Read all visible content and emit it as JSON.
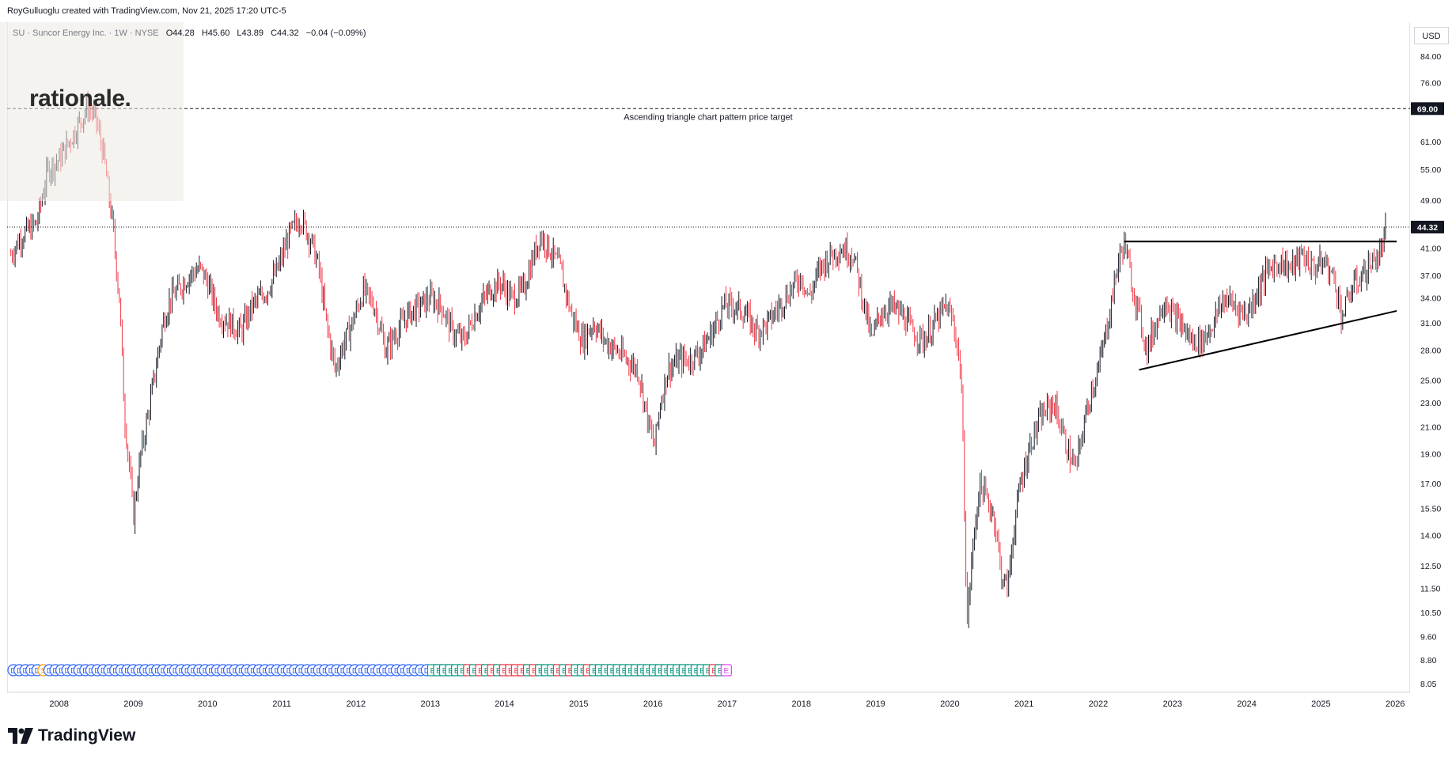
{
  "credit": "RoyGulluoglu created with TradingView.com, Nov 21, 2025 17:20 UTC-5",
  "symbol": {
    "name": "SU · Suncor Energy Inc. · 1W · NYSE",
    "open": "O44.28",
    "high": "H45.60",
    "low": "L43.89",
    "close": "C44.32",
    "change": "−0.04 (−0.09%)"
  },
  "watermark_logo": "rationale.",
  "branding": "TradingView",
  "currency": "USD",
  "colors": {
    "up": "#131722",
    "down": "#f23645",
    "grid": "#e0e3eb",
    "dividend": "#2962ff",
    "split": "#ff9800",
    "earnings_beat": "#089981",
    "earnings_miss": "#f23645",
    "earnings_upcoming": "#e040fb"
  },
  "chart_data": {
    "type": "candlestick",
    "scale": "log",
    "ylim": [
      8.0,
      92
    ],
    "yticks": [
      8.05,
      8.8,
      9.6,
      10.5,
      11.5,
      12.5,
      14.0,
      15.5,
      17.0,
      19.0,
      21.0,
      23.0,
      25.0,
      28.0,
      31.0,
      34.0,
      37.0,
      41.0,
      49.0,
      55.0,
      61.0,
      76.0,
      84.0
    ],
    "xticks": [
      "2008",
      "2009",
      "2010",
      "2011",
      "2012",
      "2013",
      "2014",
      "2015",
      "2016",
      "2017",
      "2018",
      "2019",
      "2020",
      "2021",
      "2022",
      "2023",
      "2024",
      "2025",
      "2026"
    ],
    "x_range": [
      2007.3,
      2026.2
    ],
    "last_price": 44.32,
    "last_price_label": "44.32",
    "price_series": [
      [
        2007.35,
        40
      ],
      [
        2007.5,
        43
      ],
      [
        2007.7,
        45
      ],
      [
        2007.85,
        55
      ],
      [
        2008.0,
        57
      ],
      [
        2008.2,
        63
      ],
      [
        2008.4,
        70
      ],
      [
        2008.5,
        66
      ],
      [
        2008.6,
        58
      ],
      [
        2008.72,
        45
      ],
      [
        2008.82,
        33
      ],
      [
        2008.88,
        22
      ],
      [
        2008.95,
        18
      ],
      [
        2009.0,
        15
      ],
      [
        2009.1,
        19
      ],
      [
        2009.2,
        22
      ],
      [
        2009.3,
        26
      ],
      [
        2009.4,
        31
      ],
      [
        2009.5,
        34
      ],
      [
        2009.6,
        35
      ],
      [
        2009.75,
        37
      ],
      [
        2009.9,
        38
      ],
      [
        2010.0,
        36
      ],
      [
        2010.15,
        32
      ],
      [
        2010.3,
        31
      ],
      [
        2010.45,
        30
      ],
      [
        2010.6,
        33
      ],
      [
        2010.8,
        35
      ],
      [
        2010.95,
        38
      ],
      [
        2011.1,
        43
      ],
      [
        2011.25,
        46
      ],
      [
        2011.4,
        42
      ],
      [
        2011.5,
        38
      ],
      [
        2011.6,
        31
      ],
      [
        2011.72,
        26
      ],
      [
        2011.8,
        28
      ],
      [
        2011.95,
        31
      ],
      [
        2012.1,
        35
      ],
      [
        2012.25,
        33
      ],
      [
        2012.4,
        28
      ],
      [
        2012.55,
        30
      ],
      [
        2012.7,
        32
      ],
      [
        2012.85,
        33
      ],
      [
        2013.0,
        34
      ],
      [
        2013.15,
        33
      ],
      [
        2013.3,
        30
      ],
      [
        2013.45,
        29
      ],
      [
        2013.6,
        32
      ],
      [
        2013.8,
        35
      ],
      [
        2013.95,
        36
      ],
      [
        2014.1,
        34
      ],
      [
        2014.25,
        35
      ],
      [
        2014.4,
        40
      ],
      [
        2014.48,
        43
      ],
      [
        2014.6,
        41
      ],
      [
        2014.75,
        38
      ],
      [
        2014.9,
        32
      ],
      [
        2015.05,
        29
      ],
      [
        2015.2,
        31
      ],
      [
        2015.35,
        29
      ],
      [
        2015.5,
        28
      ],
      [
        2015.65,
        27
      ],
      [
        2015.8,
        26
      ],
      [
        2015.95,
        21
      ],
      [
        2016.02,
        19.5
      ],
      [
        2016.1,
        23
      ],
      [
        2016.2,
        26
      ],
      [
        2016.35,
        27
      ],
      [
        2016.5,
        27
      ],
      [
        2016.65,
        28
      ],
      [
        2016.8,
        30
      ],
      [
        2016.95,
        33
      ],
      [
        2017.1,
        33
      ],
      [
        2017.25,
        32
      ],
      [
        2017.4,
        30
      ],
      [
        2017.55,
        31
      ],
      [
        2017.7,
        33
      ],
      [
        2017.85,
        35
      ],
      [
        2018.0,
        37
      ],
      [
        2018.1,
        34
      ],
      [
        2018.25,
        38
      ],
      [
        2018.4,
        40
      ],
      [
        2018.55,
        41
      ],
      [
        2018.7,
        40
      ],
      [
        2018.85,
        33
      ],
      [
        2018.95,
        29
      ],
      [
        2019.05,
        32
      ],
      [
        2019.2,
        33
      ],
      [
        2019.35,
        32
      ],
      [
        2019.5,
        30
      ],
      [
        2019.65,
        29
      ],
      [
        2019.8,
        31
      ],
      [
        2019.95,
        33
      ],
      [
        2020.05,
        31
      ],
      [
        2020.15,
        26
      ],
      [
        2020.2,
        15
      ],
      [
        2020.23,
        10
      ],
      [
        2020.3,
        13
      ],
      [
        2020.4,
        17
      ],
      [
        2020.5,
        16
      ],
      [
        2020.6,
        15
      ],
      [
        2020.7,
        12
      ],
      [
        2020.78,
        11.5
      ],
      [
        2020.85,
        14
      ],
      [
        2020.95,
        17
      ],
      [
        2021.1,
        20
      ],
      [
        2021.25,
        22
      ],
      [
        2021.4,
        23
      ],
      [
        2021.5,
        21
      ],
      [
        2021.6,
        19
      ],
      [
        2021.7,
        18
      ],
      [
        2021.8,
        21
      ],
      [
        2021.9,
        24
      ],
      [
        2022.0,
        26
      ],
      [
        2022.15,
        32
      ],
      [
        2022.25,
        38
      ],
      [
        2022.35,
        42
      ],
      [
        2022.45,
        36
      ],
      [
        2022.55,
        32
      ],
      [
        2022.65,
        28
      ],
      [
        2022.78,
        31
      ],
      [
        2022.9,
        34
      ],
      [
        2023.0,
        32
      ],
      [
        2023.1,
        31
      ],
      [
        2023.25,
        29
      ],
      [
        2023.4,
        29
      ],
      [
        2023.55,
        31
      ],
      [
        2023.7,
        34
      ],
      [
        2023.85,
        33
      ],
      [
        2024.0,
        32
      ],
      [
        2024.15,
        35
      ],
      [
        2024.3,
        38
      ],
      [
        2024.45,
        39
      ],
      [
        2024.6,
        38
      ],
      [
        2024.75,
        40
      ],
      [
        2024.9,
        38
      ],
      [
        2025.05,
        39
      ],
      [
        2025.2,
        36
      ],
      [
        2025.28,
        31.5
      ],
      [
        2025.4,
        35
      ],
      [
        2025.55,
        37
      ],
      [
        2025.7,
        39
      ],
      [
        2025.8,
        40
      ],
      [
        2025.88,
        44.3
      ]
    ],
    "annotations": {
      "target_line_value": 69.0,
      "target_label": "Ascending triangle chart pattern price target",
      "target_price_label": "69.00",
      "resistance": {
        "from_x": 2022.35,
        "to_x": 2026.02,
        "value": 42.0
      },
      "support": {
        "from": [
          2022.55,
          26.0
        ],
        "to": [
          2026.02,
          32.4
        ]
      }
    },
    "events": [
      "D",
      "D",
      "D",
      "D",
      "D",
      "S",
      "D",
      "D",
      "D",
      "D",
      "D",
      "D",
      "D",
      "D",
      "D",
      "D",
      "D",
      "D",
      "D",
      "D",
      "D",
      "D",
      "D",
      "D",
      "D",
      "D",
      "D",
      "D",
      "D",
      "D",
      "D",
      "D",
      "D",
      "D",
      "D",
      "D",
      "D",
      "D",
      "D",
      "D",
      "D",
      "D",
      "D",
      "D",
      "D",
      "D",
      "D",
      "D",
      "D",
      "D",
      "D",
      "D",
      "D",
      "D",
      "D",
      "D",
      "D",
      "D",
      "D",
      "D",
      "D",
      "D",
      "D",
      "D",
      "D",
      "D",
      "D",
      "D",
      "D",
      "D",
      "E+",
      "E+",
      "E+",
      "E+",
      "E+",
      "E+",
      "E-",
      "E+",
      "E-",
      "E+",
      "E-",
      "E+",
      "E-",
      "E-",
      "E-",
      "E-",
      "E+",
      "E-",
      "E+",
      "E+",
      "E+",
      "E-",
      "E+",
      "E-",
      "E+",
      "E+",
      "E-",
      "E+",
      "E+",
      "E+",
      "E+",
      "E+",
      "E+",
      "E+",
      "E+",
      "E+",
      "E+",
      "E+",
      "E+",
      "E+",
      "E+",
      "E+",
      "E+",
      "E+",
      "E+",
      "E+",
      "E+",
      "E-",
      "E+",
      "E?"
    ]
  }
}
